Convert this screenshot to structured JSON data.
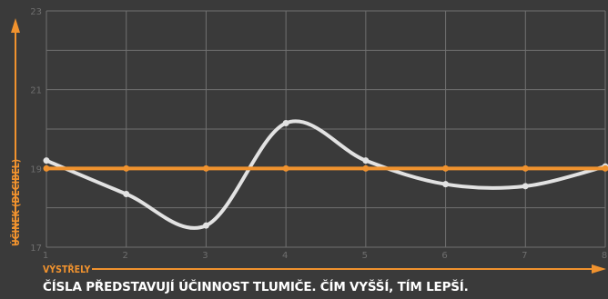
{
  "chart_data": {
    "type": "line",
    "x": [
      1,
      2,
      3,
      4,
      5,
      6,
      7,
      8
    ],
    "xlim": [
      1,
      8
    ],
    "ylim": [
      17,
      23
    ],
    "y_ticks": [
      17,
      19,
      21,
      23
    ],
    "xlabel": "VÝSTŘELY",
    "ylabel": "ÚČINEK (DECIBEL)",
    "caption": "ČÍSLA PŘEDSTAVUJÍ ÚČINNOST TLUMIČE. ČÍM VYŠŠÍ, TÍM LEPŠÍ.",
    "grid": true,
    "series": [
      {
        "color": "#e2e2e2",
        "values": [
          19.2,
          18.35,
          17.55,
          20.15,
          19.2,
          18.6,
          18.55,
          19.05
        ]
      },
      {
        "color": "#f0922e",
        "values": [
          19.0,
          19.0,
          19.0,
          19.0,
          19.0,
          19.0,
          19.0,
          19.0
        ]
      }
    ]
  },
  "colors": {
    "accent": "#f0922e",
    "background": "#3a3a3a",
    "grid": "#707070"
  }
}
